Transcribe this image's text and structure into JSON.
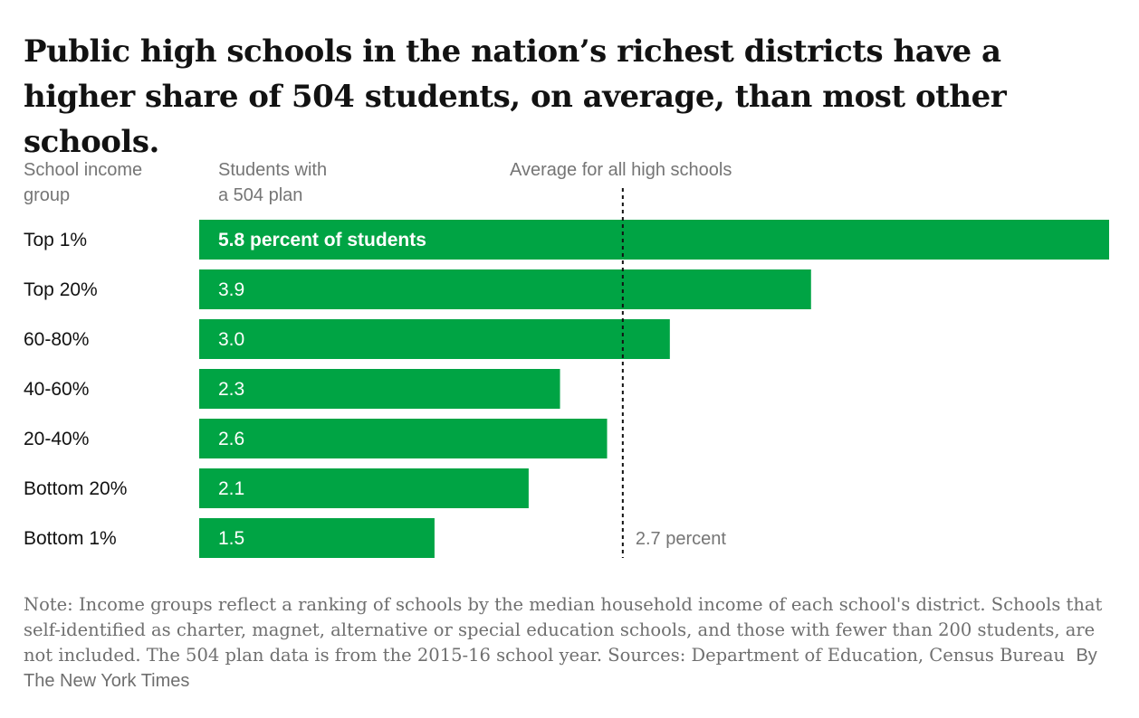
{
  "title": "Public high schools in the nation’s richest districts have a higher share of 504 students, on average, than most other schools.",
  "column_headers": {
    "group_line1": "School income",
    "group_line2": "group",
    "value_line1": "Students with",
    "value_line2": "a 504 plan",
    "average": "Average for all high schools"
  },
  "colors": {
    "bar": "#00a444",
    "label": "#121212",
    "muted": "#757575"
  },
  "chart_data": {
    "type": "bar",
    "orientation": "horizontal",
    "categories": [
      "Top 1%",
      "Top 20%",
      "60-80%",
      "40-60%",
      "20-40%",
      "Bottom 20%",
      "Bottom 1%"
    ],
    "values": [
      5.8,
      3.9,
      3.0,
      2.3,
      2.6,
      2.1,
      1.5
    ],
    "value_labels": [
      "5.8 percent of students",
      "3.9",
      "3.0",
      "2.3",
      "2.6",
      "2.1",
      "1.5"
    ],
    "reference_line": {
      "value": 2.7,
      "label": "2.7 percent"
    },
    "xlim": [
      0,
      5.8
    ],
    "unit": "percent"
  },
  "note": "Note: Income groups reflect a ranking of schools by the median household income of each school's district. Schools that self-identified as charter, magnet, alternative or special education schools, and those with fewer than 200 students, are not included. The 504 plan data is from the 2015-16 school year.  Sources: Department of Education, Census Bureau",
  "byline": "By The New York Times"
}
